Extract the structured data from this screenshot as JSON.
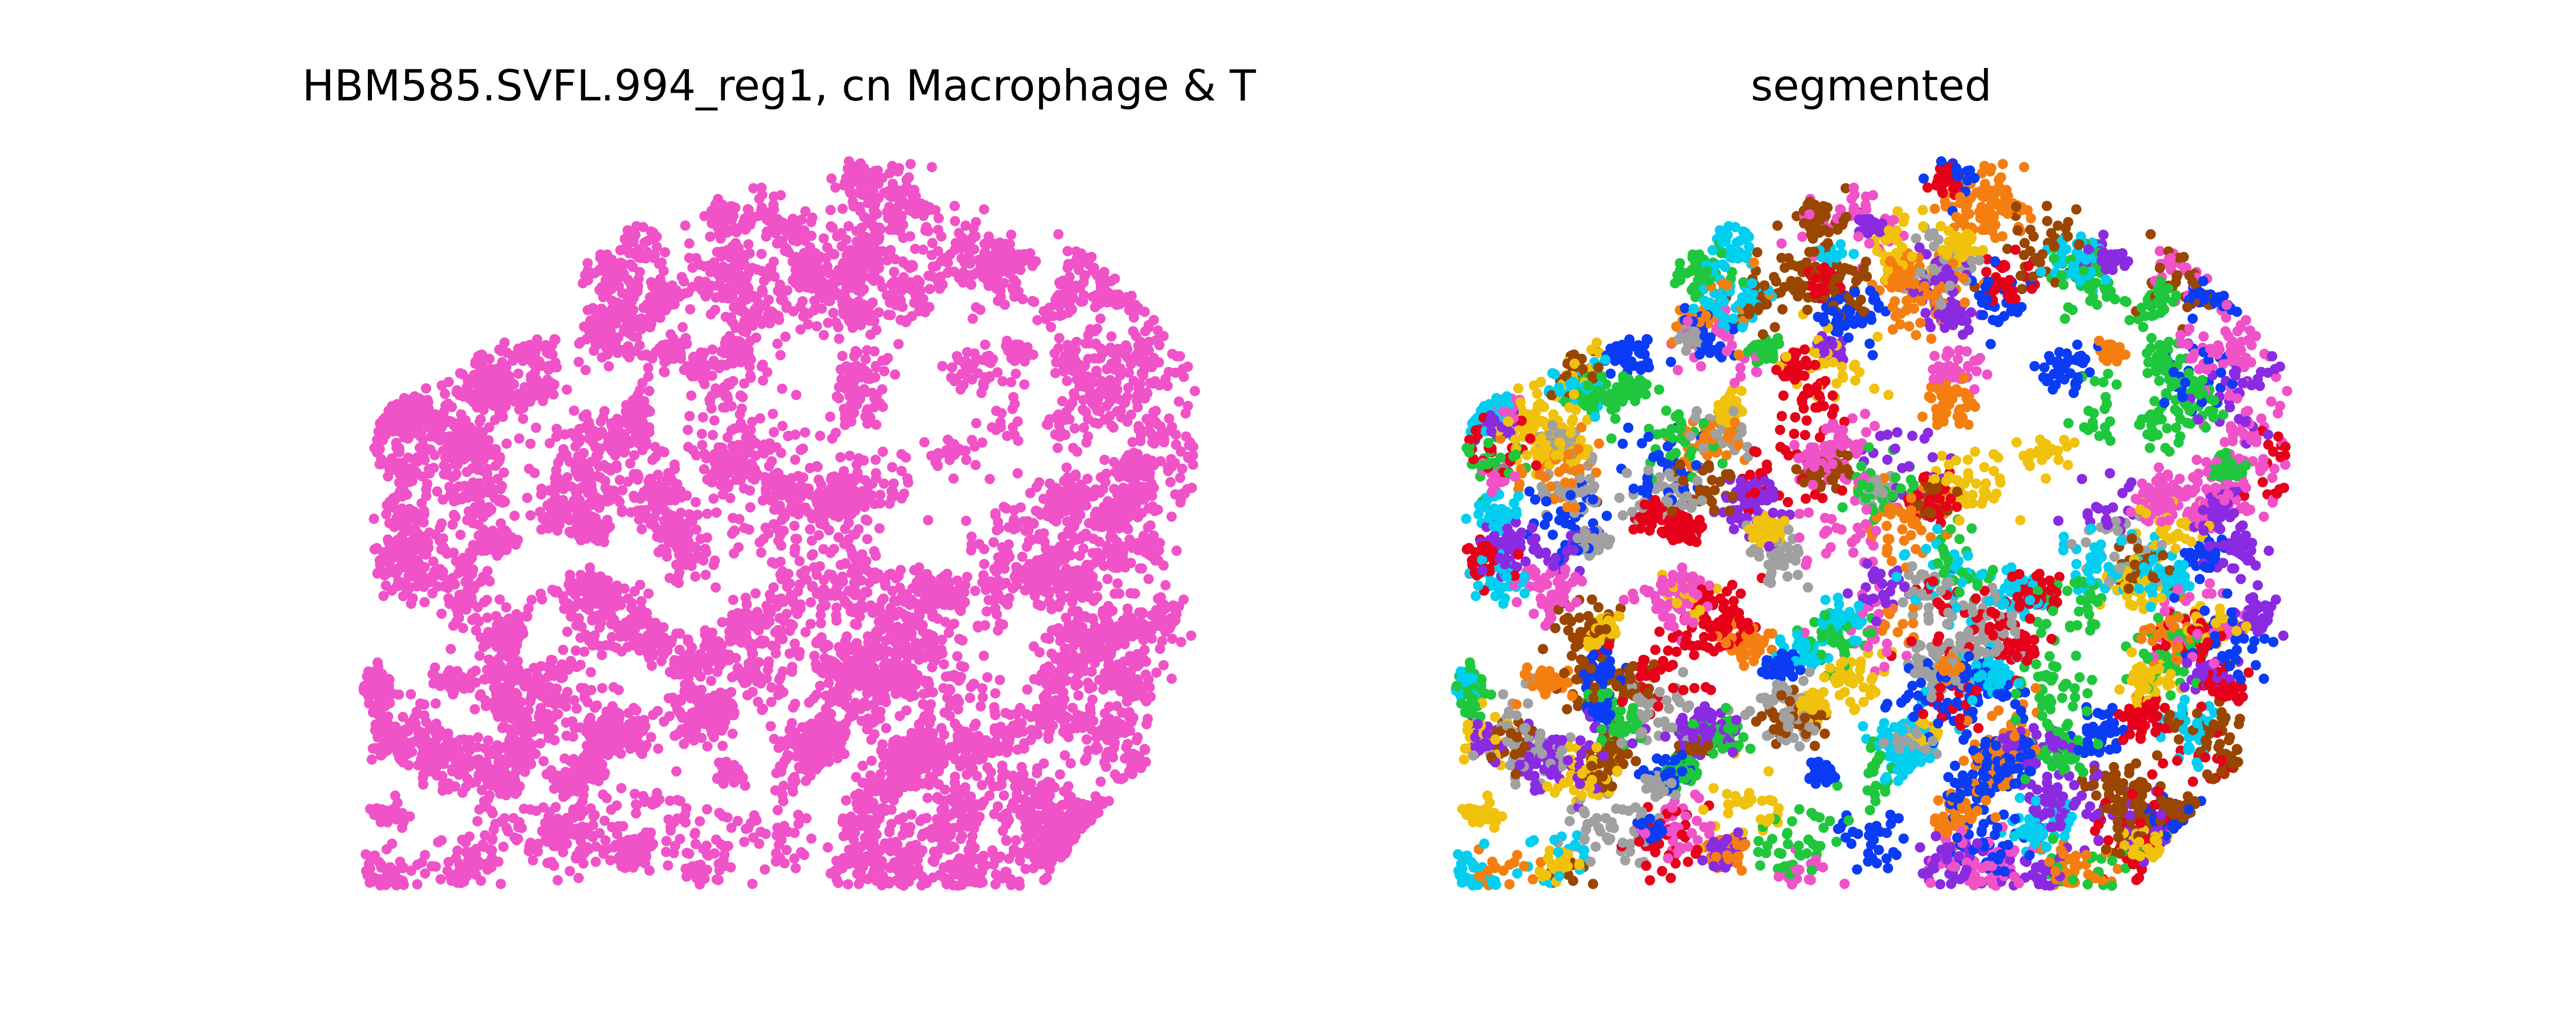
{
  "chart_data": [
    {
      "type": "scatter",
      "title": "HBM585.SVFL.994_reg1, cn Macrophage & T",
      "xlabel": "",
      "ylabel": "",
      "axes": "off",
      "grid": false,
      "legend": "none",
      "color": "#f052c8",
      "point_count_estimate": 9000
    },
    {
      "type": "scatter",
      "title": "segmented",
      "xlabel": "",
      "ylabel": "",
      "axes": "off",
      "grid": false,
      "legend": "none",
      "segment_colors": [
        "#0b3cf5",
        "#1fc73d",
        "#e6001a",
        "#00cff0",
        "#f47f10",
        "#9a4600",
        "#8a2be2",
        "#f0c20c",
        "#f052c8",
        "#a0a0a0"
      ],
      "point_count_estimate": 9000
    }
  ]
}
